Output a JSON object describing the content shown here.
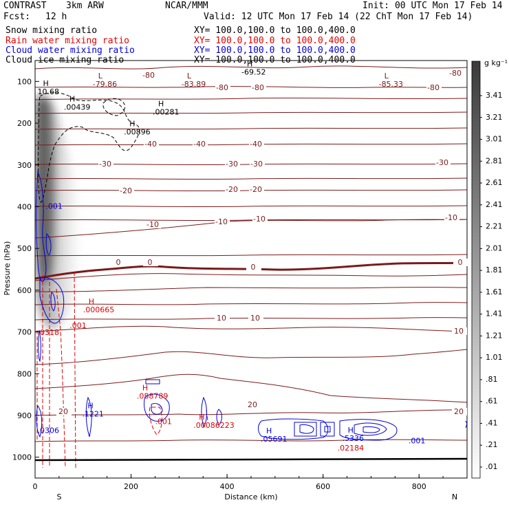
{
  "header": {
    "model": "CONTRAST",
    "model_res": "3km ARW",
    "org": "NCAR/MMM",
    "init": "Init: 00 UTC Mon 17 Feb 14",
    "fcst": "Fcst:",
    "fcst_val": "12 h",
    "valid": "Valid: 12 UTC Mon 17 Feb 14 (22 ChT Mon 17 Feb 14)"
  },
  "fields": [
    {
      "name": "Snow mixing ratio",
      "xy": "XY= 100.0,100.0 to 100.0,400.0",
      "color": "#000000"
    },
    {
      "name": "Rain water mixing ratio",
      "xy": "XY= 100.0,100.0 to 100.0,400.0",
      "color": "#e00000"
    },
    {
      "name": "Cloud water mixing ratio",
      "xy": "XY= 100.0,100.0 to 100.0,400.0",
      "color": "#0000dd"
    },
    {
      "name": "Cloud ice mixing ratio",
      "xy": "XY= 100.0,100.0 to 100.0,400.0",
      "color": "#000000"
    }
  ],
  "chart_data": {
    "type": "contour",
    "xlabel": "Distance (km)",
    "ylabel": "Pressure (hPa)",
    "xlim": [
      0,
      900
    ],
    "ylim": [
      1050,
      50
    ],
    "x_ticks": [
      0,
      200,
      400,
      600,
      800
    ],
    "y_ticks": [
      100,
      200,
      300,
      400,
      500,
      600,
      700,
      800,
      900,
      1000
    ],
    "x_end_labels": [
      "S",
      "N"
    ],
    "temperature_isotherms": [
      {
        "t": -80,
        "p": 100
      },
      {
        "t": -80,
        "p": 127
      },
      {
        "t": -40,
        "p": 210
      },
      {
        "t": -30,
        "p": 295
      },
      {
        "t": -20,
        "p": 352
      },
      {
        "t": -10,
        "p": 425
      },
      {
        "t": 0,
        "p": 540
      },
      {
        "t": 10,
        "p": 672
      },
      {
        "t": 20,
        "p": 888
      }
    ],
    "isotherm_labels": [
      "-80",
      "-80",
      "-80",
      "-80",
      "-80",
      "-40",
      "-40",
      "-40",
      "-30",
      "-30",
      "-30",
      "-30",
      "-20",
      "-20",
      "-20",
      "-10",
      "-10",
      "-10",
      "-10",
      "0",
      "0",
      "0",
      "0",
      "10",
      "10",
      "10",
      "20",
      "20",
      "20"
    ],
    "extrema_labels": [
      {
        "mark": "L",
        "value": "-79.86",
        "x": 120,
        "p": 108
      },
      {
        "mark": "L",
        "value": "-83.89",
        "x": 305,
        "p": 108
      },
      {
        "mark": "H",
        "value": "-69.52",
        "x": 430,
        "p": 79
      },
      {
        "mark": "L",
        "value": "-85.33",
        "x": 716,
        "p": 108
      },
      {
        "mark": "H",
        "value": "10.68",
        "x": 5,
        "p": 126
      },
      {
        "mark": "H",
        "value": ".00439",
        "x": 60,
        "p": 163
      },
      {
        "mark": "H",
        "value": ".00281",
        "x": 245,
        "p": 174
      },
      {
        "mark": "H",
        "value": ".00896",
        "x": 185,
        "p": 222
      },
      {
        "mark": "",
        "value": ".001",
        "x": 22,
        "p": 400
      },
      {
        "mark": "H",
        "value": ".000665",
        "x": 100,
        "p": 648
      },
      {
        "mark": "",
        "value": ".001",
        "x": 72,
        "p": 686
      },
      {
        "mark": "",
        "value": ".0318",
        "x": 5,
        "p": 702
      },
      {
        "mark": "H",
        "value": ".1221",
        "x": 98,
        "p": 898
      },
      {
        "mark": "",
        "value": ".0306",
        "x": 5,
        "p": 937
      },
      {
        "mark": "H",
        "value": ".088789",
        "x": 212,
        "p": 855
      },
      {
        "mark": "",
        "value": ".001",
        "x": 250,
        "p": 916
      },
      {
        "mark": "H",
        "value": ".00086223",
        "x": 330,
        "p": 925
      },
      {
        "mark": "H",
        "value": ".05691",
        "x": 470,
        "p": 958
      },
      {
        "mark": "H",
        "value": ".5336",
        "x": 640,
        "p": 956
      },
      {
        "mark": "",
        "value": ".02184",
        "x": 630,
        "p": 979
      },
      {
        "mark": "",
        "value": ".001",
        "x": 778,
        "p": 962
      }
    ],
    "colorbar": {
      "unit": "g kg⁻¹",
      "levels": [
        ".01",
        ".21",
        ".41",
        ".61",
        ".81",
        "1.01",
        "1.21",
        "1.41",
        "1.61",
        "1.81",
        "2.01",
        "2.21",
        "2.41",
        "2.61",
        "2.81",
        "3.01",
        "3.21",
        "3.41"
      ]
    }
  }
}
